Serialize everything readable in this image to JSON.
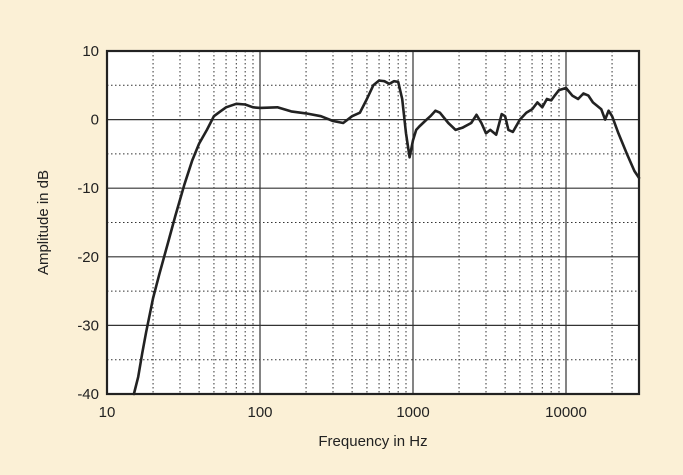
{
  "chart_data": {
    "type": "line",
    "title": "",
    "xlabel": "Frequency in Hz",
    "ylabel": "Amplitude in dB",
    "x_scale": "log",
    "xlim": [
      10,
      30000
    ],
    "ylim": [
      -40,
      10
    ],
    "grid": true,
    "x_ticks": [
      10,
      100,
      1000,
      10000
    ],
    "x_tick_labels": [
      "10",
      "100",
      "1000",
      "10000"
    ],
    "y_ticks": [
      -40,
      -30,
      -20,
      -10,
      0,
      10
    ],
    "y_tick_labels": [
      "-40",
      "-30",
      "-20",
      "-10",
      "0",
      "10"
    ],
    "background_color": "#fbf0d6",
    "plot_color": "#ffffff",
    "line_color": "#222222",
    "series": [
      {
        "x": [
          15,
          16,
          17,
          18,
          20,
          22,
          25,
          28,
          32,
          36,
          40,
          45,
          50,
          55,
          60,
          70,
          80,
          90,
          100,
          130,
          160,
          200,
          250,
          300,
          350,
          400,
          450,
          500,
          550,
          600,
          650,
          700,
          750,
          800,
          850,
          900,
          950,
          1000,
          1050,
          1100,
          1200,
          1300,
          1400,
          1500,
          1700,
          1900,
          2100,
          2400,
          2600,
          2800,
          3000,
          3200,
          3500,
          3800,
          4000,
          4200,
          4500,
          5000,
          5500,
          6000,
          6500,
          7000,
          7500,
          8000,
          8500,
          9000,
          10000,
          11000,
          12000,
          13000,
          14000,
          15000,
          16000,
          17000,
          18000,
          19000,
          20000,
          22000,
          25000,
          28000,
          30000
        ],
        "y": [
          -40,
          -37.5,
          -34,
          -31,
          -26,
          -22.5,
          -18,
          -14,
          -9.5,
          -6,
          -3.5,
          -1.5,
          0.5,
          1.2,
          1.8,
          2.3,
          2.2,
          1.8,
          1.7,
          1.8,
          1.2,
          0.9,
          0.5,
          -0.2,
          -0.5,
          0.5,
          1.0,
          3.0,
          5.0,
          5.7,
          5.6,
          5.2,
          5.6,
          5.5,
          3.0,
          -2.0,
          -5.5,
          -3.0,
          -1.5,
          -1.0,
          -0.2,
          0.5,
          1.3,
          1.0,
          -0.5,
          -1.5,
          -1.2,
          -0.5,
          0.7,
          -0.5,
          -2.0,
          -1.5,
          -2.2,
          0.8,
          0.5,
          -1.5,
          -1.8,
          0,
          1.0,
          1.5,
          2.5,
          1.8,
          3.0,
          2.8,
          3.6,
          4.3,
          4.6,
          3.5,
          3.0,
          3.8,
          3.5,
          2.5,
          2.0,
          1.5,
          0,
          1.3,
          0.5,
          -2.0,
          -5.0,
          -7.5,
          -8.5
        ]
      }
    ]
  }
}
